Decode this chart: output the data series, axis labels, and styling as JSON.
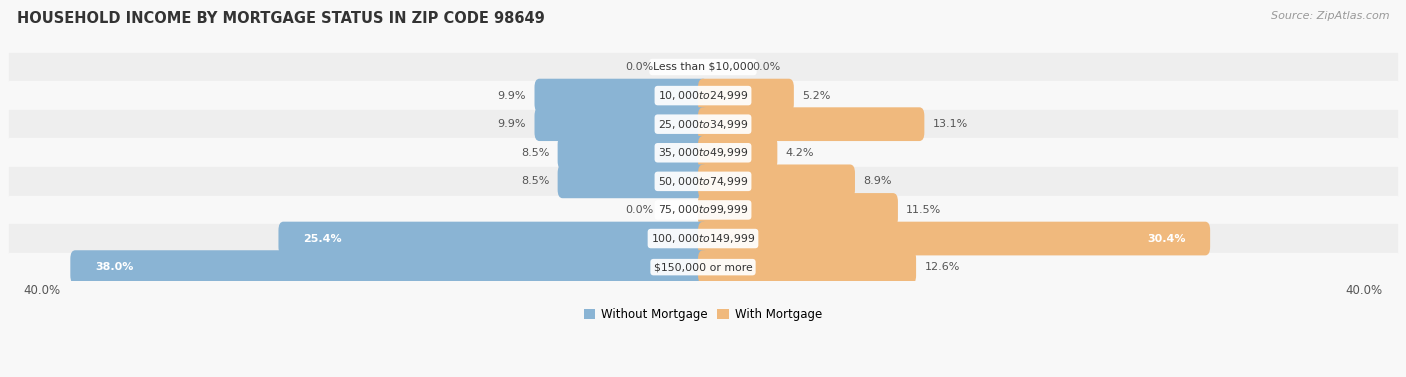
{
  "title": "HOUSEHOLD INCOME BY MORTGAGE STATUS IN ZIP CODE 98649",
  "source": "Source: ZipAtlas.com",
  "categories": [
    "Less than $10,000",
    "$10,000 to $24,999",
    "$25,000 to $34,999",
    "$35,000 to $49,999",
    "$50,000 to $74,999",
    "$75,000 to $99,999",
    "$100,000 to $149,999",
    "$150,000 or more"
  ],
  "without_mortgage": [
    0.0,
    9.9,
    9.9,
    8.5,
    8.5,
    0.0,
    25.4,
    38.0
  ],
  "with_mortgage": [
    0.0,
    5.2,
    13.1,
    4.2,
    8.9,
    11.5,
    30.4,
    12.6
  ],
  "without_mortgage_color": "#8ab4d4",
  "with_mortgage_color": "#f0b97d",
  "axis_limit": 40.0,
  "label_color_dark": "#555555",
  "label_color_light": "#ffffff",
  "legend_without": "Without Mortgage",
  "legend_with": "With Mortgage",
  "title_color": "#333333",
  "source_color": "#999999",
  "row_colors": [
    "#eeeeee",
    "#f8f8f8"
  ],
  "fig_bg": "#f8f8f8"
}
